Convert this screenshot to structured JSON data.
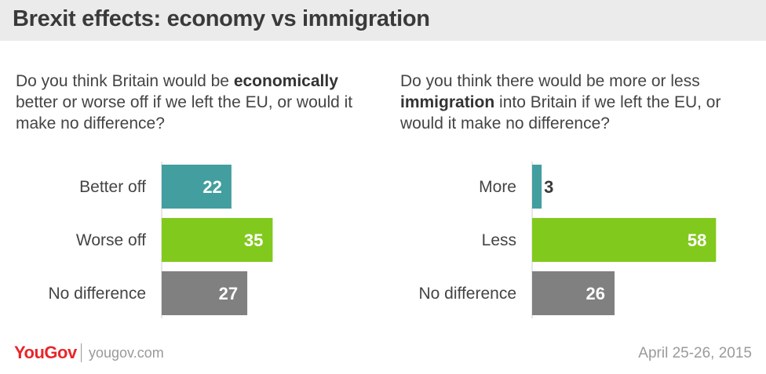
{
  "title": "Brexit effects: economy vs immigration",
  "questions": [
    {
      "pre": "Do you think Britain would be ",
      "bold": "economically",
      "post": " better or worse off if we left the EU, or would it make no difference?"
    },
    {
      "pre": "Do you think there would be more or less ",
      "bold": "immigration",
      "post": " into Britain if we left the EU, or would it make no difference?"
    }
  ],
  "chart_data": [
    {
      "type": "bar",
      "orientation": "horizontal",
      "categories": [
        "Better off",
        "Worse off",
        "No difference"
      ],
      "values": [
        22,
        35,
        27
      ],
      "colors": [
        "#439e9f",
        "#82c91e",
        "#808080"
      ]
    },
    {
      "type": "bar",
      "orientation": "horizontal",
      "categories": [
        "More",
        "Less",
        "No difference"
      ],
      "values": [
        3,
        58,
        26
      ],
      "colors": [
        "#439e9f",
        "#82c91e",
        "#808080"
      ]
    }
  ],
  "footer": {
    "brand": "YouGov",
    "site": "yougov.com",
    "date": "April 25-26, 2015"
  }
}
